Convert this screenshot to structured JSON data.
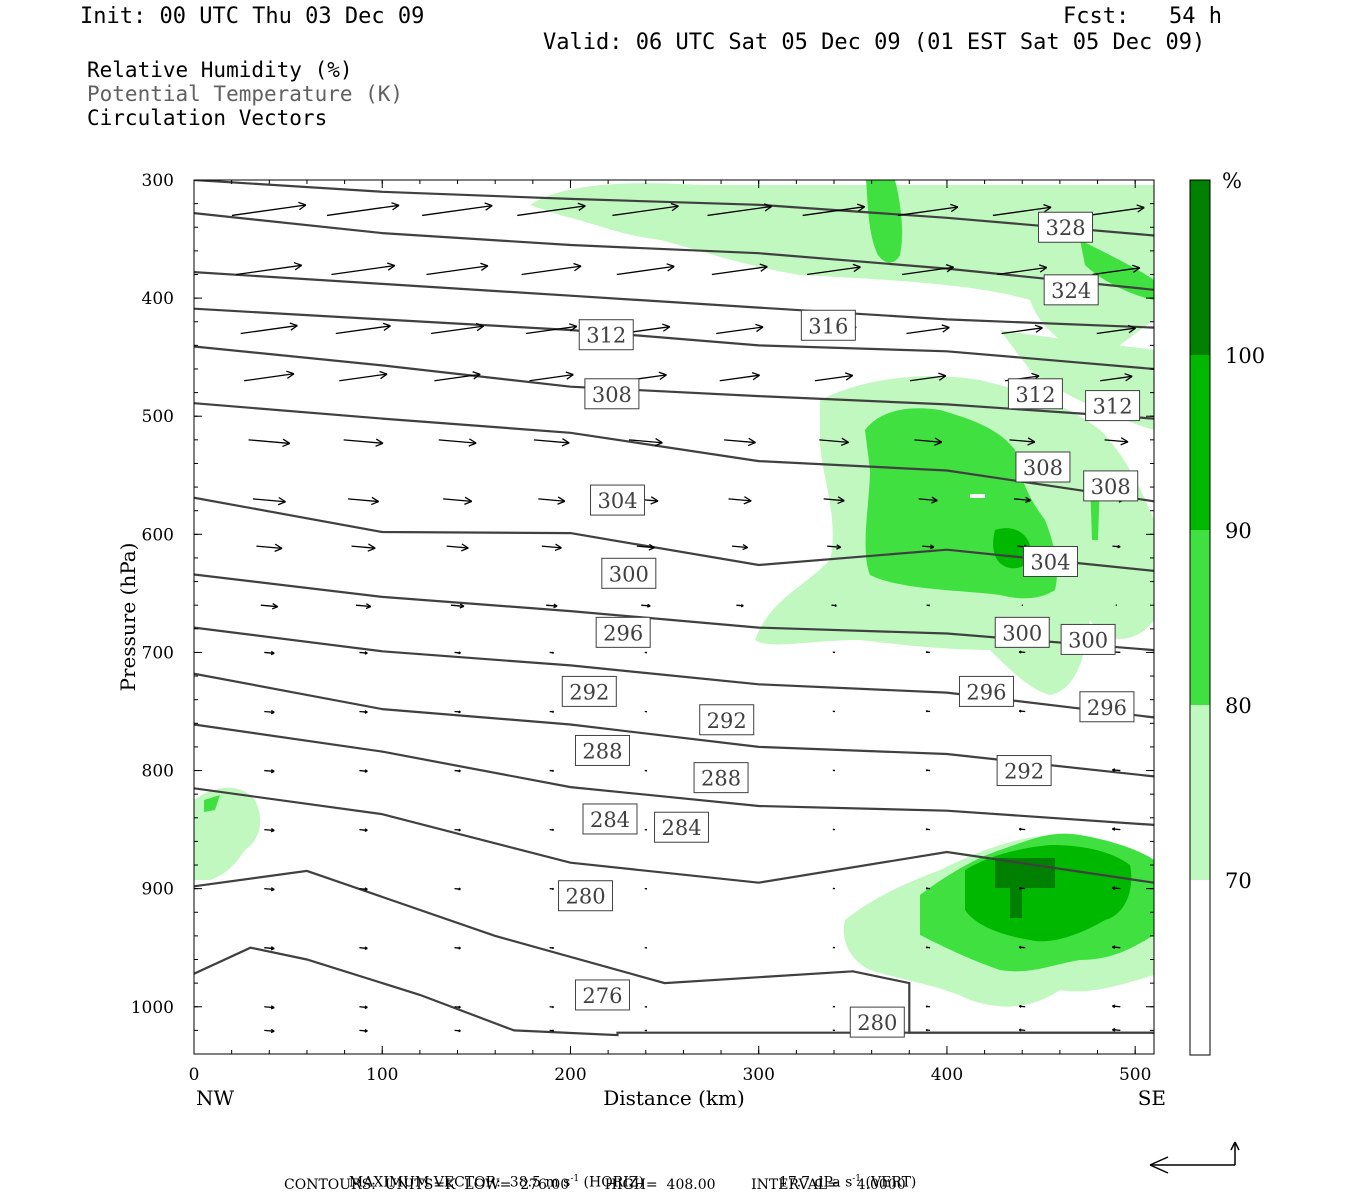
{
  "header": {
    "init": "Init: 00 UTC Thu 03 Dec 09",
    "fcst": "Fcst:   54 h",
    "valid": "Valid: 06 UTC Sat 05 Dec 09 (01 EST Sat 05 Dec 09)"
  },
  "legend": {
    "field1": "Relative Humidity (%)",
    "field2": "Potential Temperature (K)",
    "field3": "Circulation Vectors"
  },
  "footer": {
    "line1_a": "MAXIMUM VECTOR:  38.5 m s",
    "line1_sup": "-1",
    "line1_b": " (HORIZ)",
    "line1_c": "17.7 dPa s",
    "line1_d": " (VERT)",
    "line2": "CONTOURS:  UNITS=K  LOW=  276.00        HIGH=  408.00        INTERVAL=    4.0000"
  },
  "colors": {
    "rh70": "#c0f8c0",
    "rh80": "#40e040",
    "rh90": "#00b800",
    "rh100": "#008000",
    "contour": "#404040",
    "vector": "#000000"
  },
  "chart_data": {
    "type": "cross-section",
    "xlabel": "Distance (km)",
    "ylabel": "Pressure (hPa)",
    "xlim": [
      0,
      510
    ],
    "ylim": [
      1040,
      300
    ],
    "x_ticks": [
      0,
      100,
      200,
      300,
      400,
      500
    ],
    "y_ticks": [
      300,
      400,
      500,
      600,
      700,
      800,
      900,
      1000
    ],
    "x_end_labels": {
      "left": "NW",
      "right": "SE"
    },
    "colorbar": {
      "unit": "%",
      "levels": [
        70,
        80,
        90,
        100
      ],
      "labels": [
        "70",
        "80",
        "90",
        "100"
      ]
    },
    "contour_labels": [
      {
        "value": "328",
        "x": 463,
        "p": 340
      },
      {
        "value": "324",
        "x": 466,
        "p": 393
      },
      {
        "value": "316",
        "x": 337,
        "p": 423
      },
      {
        "value": "312",
        "x": 219,
        "p": 431
      },
      {
        "value": "312",
        "x": 447,
        "p": 481
      },
      {
        "value": "312",
        "x": 488,
        "p": 491
      },
      {
        "value": "308",
        "x": 222,
        "p": 481
      },
      {
        "value": "308",
        "x": 451,
        "p": 543
      },
      {
        "value": "308",
        "x": 487,
        "p": 559
      },
      {
        "value": "304",
        "x": 225,
        "p": 571
      },
      {
        "value": "304",
        "x": 455,
        "p": 623
      },
      {
        "value": "300",
        "x": 231,
        "p": 633
      },
      {
        "value": "300",
        "x": 440,
        "p": 683
      },
      {
        "value": "300",
        "x": 475,
        "p": 689
      },
      {
        "value": "296",
        "x": 228,
        "p": 683
      },
      {
        "value": "296",
        "x": 421,
        "p": 733
      },
      {
        "value": "296",
        "x": 485,
        "p": 746
      },
      {
        "value": "292",
        "x": 210,
        "p": 733
      },
      {
        "value": "292",
        "x": 283,
        "p": 757
      },
      {
        "value": "292",
        "x": 441,
        "p": 800
      },
      {
        "value": "288",
        "x": 217,
        "p": 783
      },
      {
        "value": "288",
        "x": 280,
        "p": 806
      },
      {
        "value": "284",
        "x": 221,
        "p": 841
      },
      {
        "value": "284",
        "x": 259,
        "p": 848
      },
      {
        "value": "280",
        "x": 208,
        "p": 906
      },
      {
        "value": "280",
        "x": 363,
        "p": 1013
      },
      {
        "value": "276",
        "x": 217,
        "p": 990
      }
    ],
    "theta_lines": [
      {
        "x": [
          0,
          100,
          200,
          300,
          400,
          510
        ],
        "p": [
          300,
          310,
          316,
          321,
          332,
          347
        ]
      },
      {
        "x": [
          0,
          100,
          200,
          300,
          400,
          510
        ],
        "p": [
          328,
          345,
          355,
          362,
          375,
          393
        ]
      },
      {
        "x": [
          0,
          100,
          200,
          300,
          400,
          510
        ],
        "p": [
          378,
          388,
          398,
          408,
          418,
          425
        ]
      },
      {
        "x": [
          0,
          100,
          200,
          300,
          400,
          510
        ],
        "p": [
          409,
          418,
          427,
          440,
          445,
          460
        ]
      },
      {
        "x": [
          0,
          100,
          200,
          300,
          400,
          510
        ],
        "p": [
          441,
          457,
          475,
          483,
          490,
          502
        ]
      },
      {
        "x": [
          0,
          100,
          200,
          300,
          400,
          510
        ],
        "p": [
          489,
          502,
          514,
          538,
          546,
          572
        ]
      },
      {
        "x": [
          0,
          100,
          200,
          300,
          400,
          510
        ],
        "p": [
          569,
          598,
          599,
          626,
          613,
          631
        ]
      },
      {
        "x": [
          0,
          100,
          200,
          300,
          400,
          510
        ],
        "p": [
          634,
          653,
          665,
          679,
          684,
          698
        ]
      },
      {
        "x": [
          0,
          100,
          200,
          300,
          400,
          510
        ],
        "p": [
          679,
          699,
          711,
          727,
          734,
          755
        ]
      },
      {
        "x": [
          0,
          100,
          200,
          300,
          400,
          510
        ],
        "p": [
          718,
          748,
          761,
          780,
          786,
          805
        ]
      },
      {
        "x": [
          0,
          100,
          200,
          300,
          400,
          510
        ],
        "p": [
          761,
          784,
          814,
          830,
          834,
          846
        ]
      },
      {
        "x": [
          0,
          100,
          200,
          300,
          400,
          510
        ],
        "p": [
          815,
          837,
          878,
          895,
          869,
          895
        ]
      },
      {
        "x": [
          0,
          60,
          160,
          250,
          350,
          380,
          380,
          510
        ],
        "p": [
          898,
          885,
          940,
          980,
          970,
          980,
          1022,
          1022
        ]
      },
      {
        "x": [
          0,
          30,
          60,
          120,
          170,
          225,
          225,
          510
        ],
        "p": [
          972,
          950,
          960,
          990,
          1020,
          1024,
          1022,
          1022
        ]
      }
    ]
  }
}
